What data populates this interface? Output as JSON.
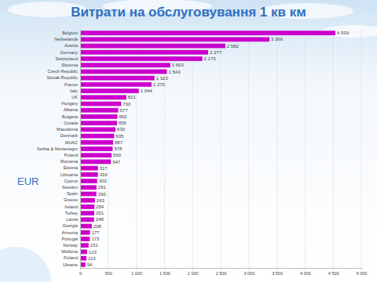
{
  "chart_data": {
    "type": "bar",
    "orientation": "horizontal",
    "title": "Витрати на обслуговування 1 кв км",
    "annotation": "EUR",
    "categories": [
      "Belgium",
      "Netherlands",
      "Austria",
      "Germany",
      "Switzerland",
      "Slovenia",
      "Czech Republic",
      "Slovak Republic",
      "France",
      "Italy",
      "UK",
      "Hungary",
      "Albania",
      "Bulgaria",
      "Croatia",
      "Macedonia",
      "Denmark",
      "MUAC",
      "Serbia & Montenegro",
      "Poland",
      "Romania",
      "Estonia",
      "Lithuania",
      "Cyprus",
      "Sweden",
      "Spain",
      "Greece",
      "Ireland",
      "Turkey",
      "Latvia",
      "Georgia",
      "Armenia",
      "Portugal",
      "Norway",
      "Moldova",
      "Finland",
      "Ukraine"
    ],
    "values": [
      4539,
      3366,
      2582,
      2277,
      2173,
      1603,
      1543,
      1323,
      1270,
      1044,
      821,
      730,
      677,
      662,
      655,
      630,
      605,
      587,
      578,
      560,
      547,
      317,
      316,
      303,
      291,
      290,
      263,
      254,
      251,
      248,
      208,
      177,
      173,
      151,
      123,
      113,
      94
    ],
    "value_labels": [
      "4 539",
      "3 366",
      "2 582",
      "2 277",
      "2 173",
      "1 603",
      "1 543",
      "1 323",
      "1 270",
      "1 044",
      "821",
      "730",
      "677",
      "662",
      "655",
      "630",
      "605",
      "587",
      "578",
      "560",
      "547",
      "317",
      "316",
      "303",
      "291",
      "290",
      "263",
      "254",
      "251",
      "248",
      "208",
      "177",
      "173",
      "151",
      "123",
      "113",
      "94"
    ],
    "color": "#cc00cc",
    "data_labels": true,
    "grid": true,
    "xlim": [
      0,
      5000
    ],
    "xticks": [
      0,
      500,
      {
        "value": 1000,
        "label": "1 000"
      },
      {
        "value": 1500,
        "label": "1 500"
      },
      {
        "value": 2000,
        "label": "2 000"
      },
      {
        "value": 2500,
        "label": "2 500"
      },
      {
        "value": 3000,
        "label": "3 000"
      },
      {
        "value": 3500,
        "label": "3 500"
      },
      {
        "value": 4000,
        "label": "4 000"
      },
      {
        "value": 4500,
        "label": "4 500"
      },
      {
        "value": 5000,
        "label": "5 000"
      }
    ]
  }
}
